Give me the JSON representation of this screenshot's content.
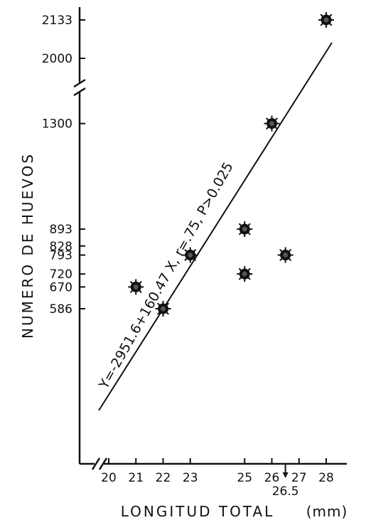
{
  "chart_data": {
    "type": "scatter",
    "xlabel": "LONGITUD  TOTAL",
    "xunit": "(mm)",
    "ylabel": "NUMERO DE HUEVOS",
    "x_ticks": [
      20,
      21,
      22,
      23,
      25,
      26,
      27,
      28
    ],
    "x_marker": {
      "value": 26.5,
      "label": "26.5"
    },
    "y_ticks": [
      586,
      670,
      720,
      793,
      828,
      893,
      1300,
      2000,
      2133
    ],
    "y_axis_break": true,
    "x_axis_break": true,
    "points": [
      {
        "x": 21,
        "y": 670
      },
      {
        "x": 22,
        "y": 586
      },
      {
        "x": 23,
        "y": 793
      },
      {
        "x": 25,
        "y": 893
      },
      {
        "x": 25,
        "y": 720
      },
      {
        "x": 26,
        "y": 1300
      },
      {
        "x": 26.5,
        "y": 793
      },
      {
        "x": 28,
        "y": 2133
      }
    ],
    "regression": {
      "intercept": -2951.6,
      "slope": 160.47,
      "label": "Y=-2951.6+160.47 X, r=.75, P>0.025"
    },
    "grid": false,
    "legend": "none"
  }
}
